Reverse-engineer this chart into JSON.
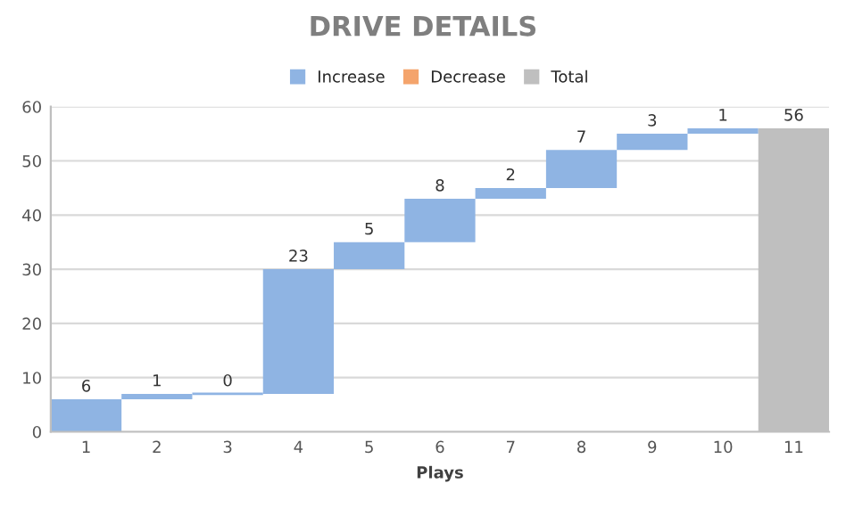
{
  "chart_data": {
    "type": "bar",
    "title": "DRIVE DETAILS",
    "xlabel": "Plays",
    "categories": [
      "1",
      "2",
      "3",
      "4",
      "5",
      "6",
      "7",
      "8",
      "9",
      "10",
      "11"
    ],
    "series": [
      {
        "name": "Increase",
        "color": "#8fb4e3",
        "base": [
          0,
          6,
          7,
          7,
          30,
          35,
          43,
          45,
          52,
          55,
          null
        ],
        "values": [
          6,
          1,
          0,
          23,
          5,
          8,
          2,
          7,
          3,
          1,
          null
        ]
      },
      {
        "name": "Decrease",
        "color": "#f4a46c",
        "values": [
          null,
          null,
          null,
          null,
          null,
          null,
          null,
          null,
          null,
          null,
          null
        ]
      },
      {
        "name": "Total",
        "color": "#bfbfbf",
        "base": [
          null,
          null,
          null,
          null,
          null,
          null,
          null,
          null,
          null,
          null,
          0
        ],
        "values": [
          null,
          null,
          null,
          null,
          null,
          null,
          null,
          null,
          null,
          null,
          56
        ]
      }
    ],
    "ylim": [
      0,
      60
    ],
    "yticks": [
      0,
      10,
      20,
      30,
      40,
      50,
      60
    ],
    "grid": "y",
    "legend": "top",
    "data_labels": true
  }
}
